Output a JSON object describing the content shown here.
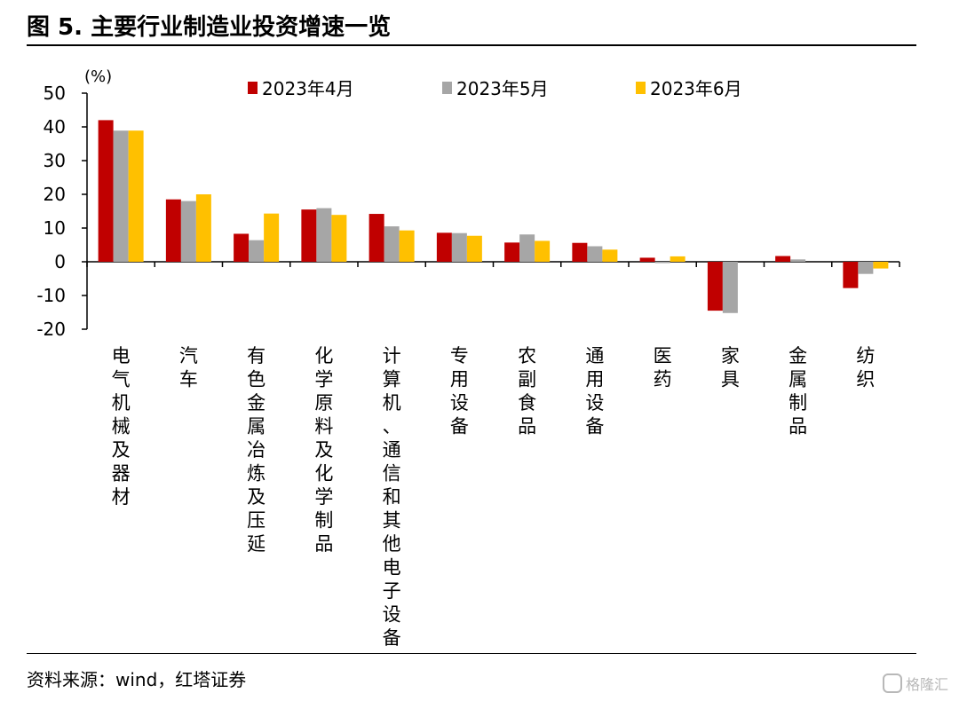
{
  "title": "图 5. 主要行业制造业投资增速一览",
  "source": "资料来源：wind，红塔证券",
  "watermark": "格隆汇",
  "chart_data": {
    "type": "bar",
    "y_unit": "(%)",
    "ylim": [
      -20,
      50
    ],
    "yticks": [
      -20,
      -10,
      0,
      10,
      20,
      30,
      40,
      50
    ],
    "grid": false,
    "legend_position": "top",
    "categories": [
      "电气机械及器材",
      "汽车",
      "有色金属冶炼及压延",
      "化学原料及化学制品",
      "计算机、通信和其他电子设备",
      "专用设备",
      "农副食品",
      "通用设备",
      "医药",
      "家具",
      "金属制品",
      "纺织"
    ],
    "series": [
      {
        "name": "2023年4月",
        "color": "#C00000",
        "values": [
          42.0,
          18.5,
          8.3,
          15.5,
          14.2,
          8.6,
          5.7,
          5.6,
          1.2,
          -14.5,
          1.7,
          -7.8
        ]
      },
      {
        "name": "2023年5月",
        "color": "#A6A6A6",
        "values": [
          38.9,
          18.0,
          6.4,
          15.9,
          10.5,
          8.5,
          8.1,
          4.6,
          -0.4,
          -15.2,
          0.7,
          -3.6
        ]
      },
      {
        "name": "2023年6月",
        "color": "#FFC000",
        "values": [
          38.9,
          20.0,
          14.3,
          13.9,
          9.3,
          7.7,
          6.2,
          3.6,
          1.6,
          0.0,
          0.0,
          -2.0
        ]
      }
    ]
  }
}
